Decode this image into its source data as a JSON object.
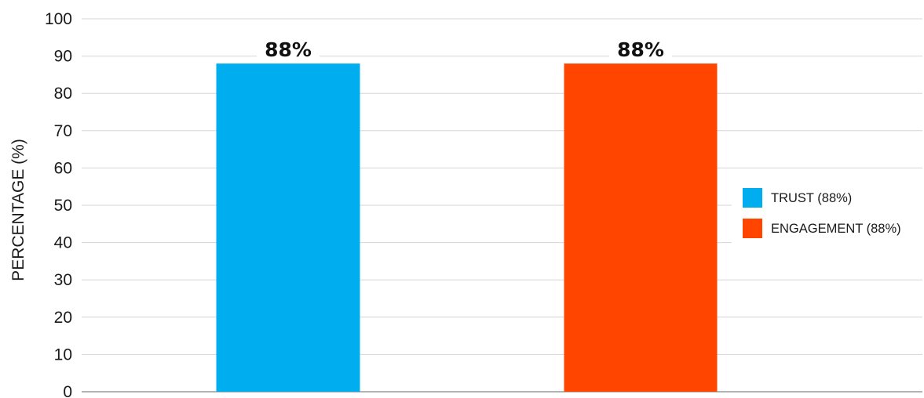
{
  "chart_data": {
    "type": "bar",
    "categories": [
      "TRUST",
      "ENGAGEMENT"
    ],
    "values": [
      88,
      88
    ],
    "colors": [
      "#00AEEF",
      "#FF4500"
    ],
    "data_labels": [
      "88%",
      "88%"
    ],
    "ylabel": "PERCENTAGE (%)",
    "ylim": [
      0,
      100
    ],
    "yticks": [
      0,
      10,
      20,
      30,
      40,
      50,
      60,
      70,
      80,
      90,
      100
    ],
    "ytick_labels": [
      "0",
      "10",
      "20",
      "30",
      "40",
      "50",
      "60",
      "70",
      "80",
      "90",
      "100"
    ],
    "grid": true,
    "legend": {
      "position": "right",
      "entries": [
        {
          "label": "TRUST (88%)",
          "color": "#00AEEF"
        },
        {
          "label": "ENGAGEMENT (88%)",
          "color": "#FF4500"
        }
      ]
    }
  }
}
